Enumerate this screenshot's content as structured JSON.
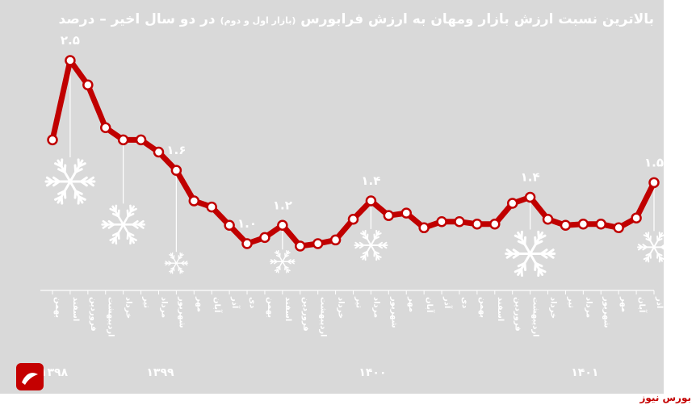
{
  "chart_data": {
    "type": "line",
    "title": "بالاترین نسبت ارزش بازار ومهان به ارزش فرابورس",
    "title_note": "(بازار اول و دوم)",
    "title_suffix": "در دو سال اخیر – درصد",
    "ylim": [
      0.8,
      2.7
    ],
    "grid": false,
    "line_color": "#c00000",
    "marker_fill": "#ffffff",
    "background": "#d9d9d9",
    "categories": [
      "بهمن",
      "اسفند",
      "فروردین",
      "اردیبهشت",
      "خرداد",
      "تیر",
      "مرداد",
      "شهریور",
      "مهر",
      "آبان",
      "آذر",
      "دی",
      "بهمن",
      "اسفند",
      "فروردین",
      "اردیبهشت",
      "خرداد",
      "تیر",
      "مرداد",
      "شهریور",
      "مهر",
      "آبان",
      "آذر",
      "دی",
      "بهمن",
      "اسفند",
      "فروردین",
      "اردیبهشت",
      "خرداد",
      "تیر",
      "مرداد",
      "شهریور",
      "مهر",
      "آبان",
      "آذر"
    ],
    "values": [
      1.85,
      2.5,
      2.3,
      1.95,
      1.85,
      1.85,
      1.75,
      1.6,
      1.35,
      1.3,
      1.15,
      1.0,
      1.05,
      1.15,
      0.98,
      1.0,
      1.03,
      1.2,
      1.35,
      1.23,
      1.25,
      1.13,
      1.18,
      1.18,
      1.16,
      1.16,
      1.33,
      1.38,
      1.2,
      1.15,
      1.16,
      1.16,
      1.13,
      1.21,
      1.5
    ],
    "value_labels": [
      {
        "index": 1,
        "text": "۲.۵"
      },
      {
        "index": 7,
        "text": "۱.۶"
      },
      {
        "index": 11,
        "text": "۱.۰"
      },
      {
        "index": 13,
        "text": "۱.۲"
      },
      {
        "index": 18,
        "text": "۱.۴"
      },
      {
        "index": 27,
        "text": "۱.۴"
      },
      {
        "index": 34,
        "text": "۱.۵"
      }
    ],
    "year_labels": [
      {
        "text": "۱۳۹۸",
        "index": 0
      },
      {
        "text": "۱۳۹۹",
        "index": 6
      },
      {
        "text": "۱۴۰۰",
        "index": 18
      },
      {
        "text": "۱۴۰۱",
        "index": 30
      }
    ]
  },
  "source_label": "بورس نیوز"
}
